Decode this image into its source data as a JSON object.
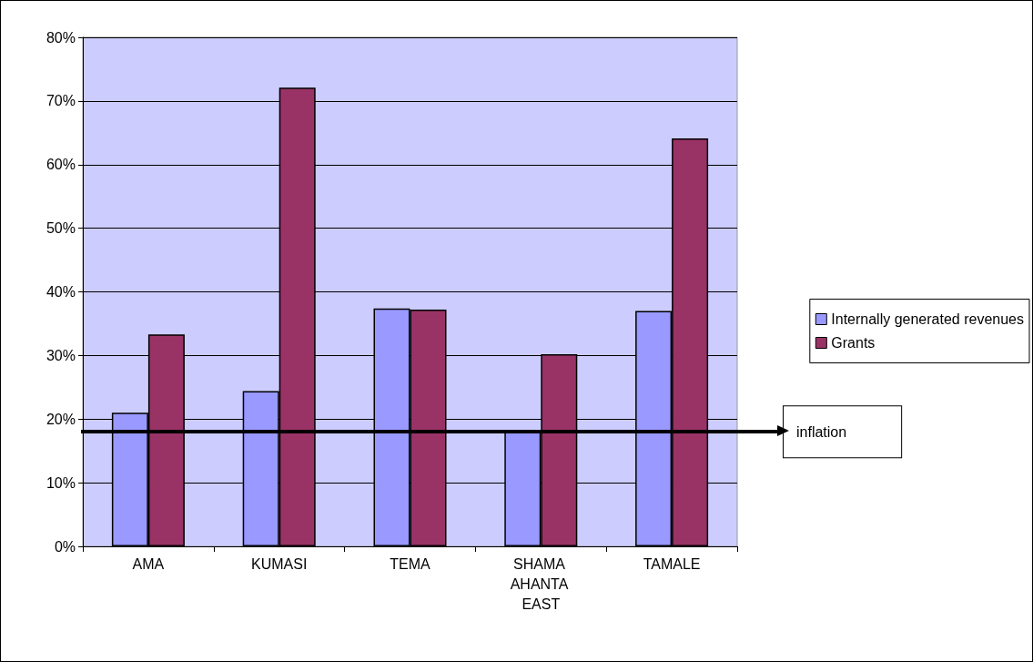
{
  "chart_data": {
    "type": "bar",
    "categories": [
      "AMA",
      "KUMASI",
      "TEMA",
      "SHAMA AHANTA EAST",
      "TAMALE"
    ],
    "series": [
      {
        "name": "Internally generated revenues",
        "color": "#9999ff",
        "values": [
          21,
          24.4,
          37.4,
          18.3,
          37
        ]
      },
      {
        "name": "Grants",
        "color": "#993366",
        "values": [
          33.3,
          72.1,
          37.2,
          30.2,
          64.1
        ]
      }
    ],
    "ylim": [
      0,
      80
    ],
    "yticks": [
      {
        "value": 0,
        "label": "0%"
      },
      {
        "value": 10,
        "label": "10%"
      },
      {
        "value": 20,
        "label": "20%"
      },
      {
        "value": 30,
        "label": "30%"
      },
      {
        "value": 40,
        "label": "40%"
      },
      {
        "value": 50,
        "label": "50%"
      },
      {
        "value": 60,
        "label": "60%"
      },
      {
        "value": 70,
        "label": "70%"
      },
      {
        "value": 80,
        "label": "80%"
      }
    ],
    "ref_lines": [
      {
        "axis": "y",
        "value": 18,
        "label": "inflation",
        "color": "#000000"
      }
    ],
    "grid": "y",
    "legend": "right"
  }
}
